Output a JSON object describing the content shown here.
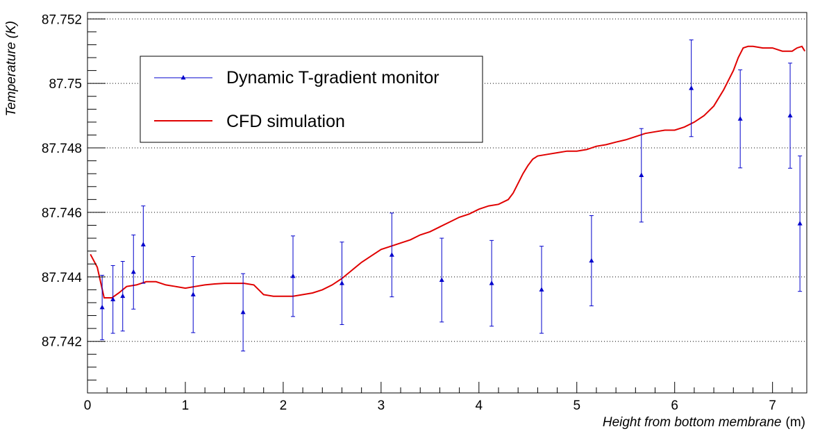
{
  "chart_data": {
    "type": "scatter",
    "xlabel": "Height from bottom membrane",
    "xlabel_unit": "(m)",
    "ylabel": "Temperature (K)",
    "xlim": [
      0,
      7.35
    ],
    "ylim": [
      87.7404,
      87.7522
    ],
    "x_ticks": [
      0,
      1,
      2,
      3,
      4,
      5,
      6,
      7
    ],
    "x_tick_labels": [
      "0",
      "1",
      "2",
      "3",
      "4",
      "5",
      "6",
      "7"
    ],
    "y_ticks": [
      87.742,
      87.744,
      87.746,
      87.748,
      87.75,
      87.752
    ],
    "y_tick_labels": [
      "87.742",
      "87.744",
      "87.746",
      "87.748",
      "87.75",
      "87.752"
    ],
    "grid": "horizontal-dotted",
    "legend_position": "top-left",
    "colors": {
      "monitor": "#0000cc",
      "simulation": "#e00000",
      "axis": "#000000"
    },
    "series": [
      {
        "name": "Dynamic T-gradient monitor",
        "style": "points-with-error-bars",
        "x": [
          0.15,
          0.26,
          0.36,
          0.47,
          0.57,
          1.08,
          1.59,
          2.1,
          2.6,
          3.11,
          3.62,
          4.13,
          4.64,
          5.15,
          5.66,
          6.17,
          6.67,
          7.18,
          7.28
        ],
        "y": [
          87.74305,
          87.7433,
          87.7434,
          87.74415,
          87.745,
          87.74345,
          87.7429,
          87.74402,
          87.7438,
          87.74468,
          87.7439,
          87.7438,
          87.7436,
          87.7445,
          87.74715,
          87.74985,
          87.7489,
          87.749,
          87.74565
        ],
        "err": [
          0.001,
          0.00105,
          0.00108,
          0.00115,
          0.0012,
          0.00118,
          0.0012,
          0.00125,
          0.00128,
          0.0013,
          0.0013,
          0.00133,
          0.00135,
          0.0014,
          0.00145,
          0.0015,
          0.00152,
          0.00163,
          0.0021
        ]
      },
      {
        "name": "CFD simulation",
        "style": "line",
        "x": [
          0.03,
          0.1,
          0.17,
          0.25,
          0.32,
          0.4,
          0.5,
          0.6,
          0.7,
          0.8,
          0.9,
          1.0,
          1.1,
          1.2,
          1.3,
          1.4,
          1.5,
          1.6,
          1.7,
          1.75,
          1.8,
          1.9,
          2.0,
          2.1,
          2.2,
          2.3,
          2.4,
          2.5,
          2.6,
          2.7,
          2.8,
          2.9,
          3.0,
          3.1,
          3.2,
          3.3,
          3.4,
          3.5,
          3.6,
          3.7,
          3.8,
          3.9,
          4.0,
          4.1,
          4.2,
          4.3,
          4.35,
          4.4,
          4.45,
          4.5,
          4.55,
          4.6,
          4.7,
          4.8,
          4.9,
          5.0,
          5.1,
          5.2,
          5.3,
          5.4,
          5.5,
          5.6,
          5.7,
          5.8,
          5.9,
          6.0,
          6.1,
          6.2,
          6.3,
          6.4,
          6.5,
          6.6,
          6.65,
          6.7,
          6.75,
          6.8,
          6.9,
          7.0,
          7.1,
          7.2,
          7.25,
          7.3,
          7.33
        ],
        "y": [
          87.7447,
          87.7443,
          87.74335,
          87.74335,
          87.7435,
          87.7437,
          87.74375,
          87.74385,
          87.74385,
          87.74375,
          87.7437,
          87.74365,
          87.7437,
          87.74375,
          87.74378,
          87.7438,
          87.7438,
          87.7438,
          87.74375,
          87.7436,
          87.74345,
          87.7434,
          87.7434,
          87.7434,
          87.74345,
          87.7435,
          87.7436,
          87.74375,
          87.74395,
          87.7442,
          87.74445,
          87.74465,
          87.74485,
          87.74495,
          87.74505,
          87.74515,
          87.7453,
          87.7454,
          87.74555,
          87.7457,
          87.74585,
          87.74595,
          87.7461,
          87.7462,
          87.74625,
          87.7464,
          87.7466,
          87.7469,
          87.7472,
          87.74745,
          87.74765,
          87.74775,
          87.7478,
          87.74785,
          87.7479,
          87.7479,
          87.74795,
          87.74805,
          87.7481,
          87.74818,
          87.74825,
          87.74835,
          87.74845,
          87.7485,
          87.74855,
          87.74855,
          87.74865,
          87.7488,
          87.749,
          87.7493,
          87.7498,
          87.7504,
          87.7508,
          87.7511,
          87.75115,
          87.75115,
          87.7511,
          87.7511,
          87.751,
          87.751,
          87.7511,
          87.75115,
          87.751
        ]
      }
    ]
  }
}
